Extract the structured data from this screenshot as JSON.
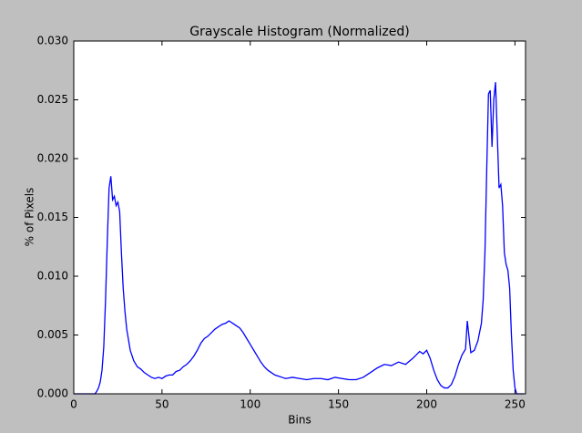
{
  "chart_data": {
    "type": "line",
    "title": "Grayscale Histogram (Normalized)",
    "xlabel": "Bins",
    "ylabel": "% of Pixels",
    "x": [
      0,
      12,
      13,
      14,
      15,
      16,
      17,
      18,
      19,
      20,
      21,
      22,
      23,
      24,
      25,
      26,
      27,
      28,
      29,
      30,
      32,
      34,
      36,
      38,
      40,
      42,
      44,
      46,
      48,
      50,
      52,
      54,
      56,
      58,
      60,
      62,
      64,
      66,
      68,
      70,
      72,
      74,
      76,
      78,
      80,
      82,
      84,
      86,
      88,
      90,
      92,
      94,
      96,
      98,
      100,
      102,
      104,
      106,
      108,
      110,
      112,
      114,
      116,
      118,
      120,
      124,
      128,
      132,
      136,
      140,
      144,
      148,
      152,
      156,
      160,
      164,
      168,
      172,
      176,
      180,
      184,
      188,
      192,
      196,
      198,
      200,
      202,
      204,
      206,
      208,
      210,
      212,
      214,
      216,
      218,
      220,
      222,
      223,
      224,
      225,
      227,
      229,
      231,
      232,
      233,
      234,
      235,
      236,
      237,
      238,
      239,
      240,
      241,
      242,
      243,
      244,
      245,
      246,
      247,
      248,
      249,
      250,
      251,
      255
    ],
    "values": [
      0,
      0,
      0.0002,
      0.0005,
      0.001,
      0.002,
      0.004,
      0.008,
      0.013,
      0.0175,
      0.0185,
      0.0165,
      0.0168,
      0.016,
      0.0163,
      0.0155,
      0.012,
      0.009,
      0.007,
      0.0055,
      0.0037,
      0.0028,
      0.0023,
      0.0021,
      0.0018,
      0.0016,
      0.0014,
      0.0013,
      0.0014,
      0.0013,
      0.0015,
      0.0016,
      0.0016,
      0.0019,
      0.002,
      0.0023,
      0.0025,
      0.0028,
      0.0032,
      0.0037,
      0.0043,
      0.0047,
      0.0049,
      0.0052,
      0.0055,
      0.0057,
      0.0059,
      0.006,
      0.0062,
      0.006,
      0.0058,
      0.0056,
      0.0052,
      0.0047,
      0.0042,
      0.0037,
      0.0032,
      0.0027,
      0.0023,
      0.002,
      0.0018,
      0.0016,
      0.0015,
      0.0014,
      0.0013,
      0.0014,
      0.0013,
      0.0012,
      0.0013,
      0.0013,
      0.0012,
      0.0014,
      0.0013,
      0.0012,
      0.0012,
      0.0014,
      0.0018,
      0.0022,
      0.0025,
      0.0024,
      0.0027,
      0.0025,
      0.003,
      0.0036,
      0.0034,
      0.0037,
      0.003,
      0.002,
      0.0012,
      0.0007,
      0.0005,
      0.0005,
      0.0008,
      0.0015,
      0.0025,
      0.0033,
      0.0038,
      0.0062,
      0.0048,
      0.0035,
      0.0037,
      0.0045,
      0.006,
      0.008,
      0.012,
      0.019,
      0.0255,
      0.0258,
      0.021,
      0.025,
      0.0265,
      0.022,
      0.0175,
      0.0178,
      0.016,
      0.012,
      0.011,
      0.0105,
      0.009,
      0.005,
      0.002,
      0.0005,
      0,
      0
    ],
    "color": "#0000ff",
    "xlim": [
      0,
      256
    ],
    "xticks": [
      0,
      50,
      100,
      150,
      200,
      250
    ],
    "ylim": [
      0,
      0.03
    ],
    "yticks": [
      {
        "value": 0,
        "label": "0.000"
      },
      {
        "value": 0.005,
        "label": "0.005"
      },
      {
        "value": 0.01,
        "label": "0.010"
      },
      {
        "value": 0.015,
        "label": "0.015"
      },
      {
        "value": 0.02,
        "label": "0.020"
      },
      {
        "value": 0.025,
        "label": "0.025"
      },
      {
        "value": 0.03,
        "label": "0.030"
      }
    ],
    "grid": false
  }
}
